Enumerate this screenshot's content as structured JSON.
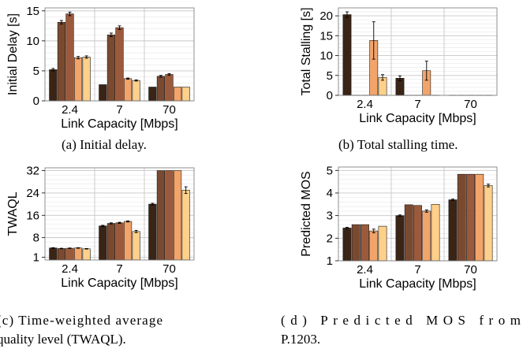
{
  "chart_data": [
    {
      "type": "bar",
      "ylabel": "Initial Delay [s]",
      "xlabel": "Link Capacity [Mbps]",
      "categories": [
        "2.4",
        "7",
        "70"
      ],
      "ylim": [
        0,
        15.5
      ],
      "yticks": [
        0,
        5,
        10,
        15
      ],
      "grid": true,
      "series_colors": [
        "#3a2416",
        "#7a4a30",
        "#9c5a3c",
        "#f2a46a",
        "#ffd08a"
      ],
      "series": [
        {
          "values": [
            5.2,
            2.7,
            2.3
          ],
          "errors": [
            0.2,
            0.0,
            0.0
          ]
        },
        {
          "values": [
            13.1,
            11.0,
            4.1
          ],
          "errors": [
            0.3,
            0.3,
            0.15
          ]
        },
        {
          "values": [
            14.5,
            12.2,
            4.4
          ],
          "errors": [
            0.3,
            0.3,
            0.15
          ]
        },
        {
          "values": [
            7.2,
            3.7,
            2.3
          ],
          "errors": [
            0.2,
            0.1,
            0.0
          ]
        },
        {
          "values": [
            7.3,
            3.4,
            2.3
          ],
          "errors": [
            0.2,
            0.1,
            0.0
          ]
        }
      ],
      "caption": "(a) Initial delay."
    },
    {
      "type": "bar",
      "ylabel": "Total Stalling [s]",
      "xlabel": "Link Capacity [Mbps]",
      "categories": [
        "2.4",
        "7",
        "70"
      ],
      "ylim": [
        0,
        22
      ],
      "yticks": [
        0,
        5,
        10,
        15,
        20
      ],
      "grid": true,
      "series_colors": [
        "#3a2416",
        "#7a4a30",
        "#9c5a3c",
        "#f2a46a",
        "#ffd08a"
      ],
      "series": [
        {
          "values": [
            20.3,
            4.3,
            0.0
          ],
          "errors": [
            0.7,
            0.6,
            0.0
          ]
        },
        {
          "values": [
            0.0,
            0.0,
            0.0
          ],
          "errors": [
            0.0,
            0.0,
            0.0
          ]
        },
        {
          "values": [
            0.0,
            0.0,
            0.0
          ],
          "errors": [
            0.0,
            0.0,
            0.0
          ]
        },
        {
          "values": [
            13.8,
            6.2,
            0.0
          ],
          "errors": [
            4.7,
            2.4,
            0.0
          ]
        },
        {
          "values": [
            4.5,
            0.0,
            0.0
          ],
          "errors": [
            0.7,
            0.0,
            0.0
          ]
        }
      ],
      "caption": "(b) Total stalling time."
    },
    {
      "type": "bar",
      "ylabel": "TWAQL",
      "xlabel": "Link Capacity [Mbps]",
      "categories": [
        "2.4",
        "7",
        "70"
      ],
      "ylim": [
        0,
        33
      ],
      "yticks": [
        1,
        8,
        16,
        24,
        32
      ],
      "grid": true,
      "series_colors": [
        "#3a2416",
        "#7a4a30",
        "#9c5a3c",
        "#f2a46a",
        "#ffd08a"
      ],
      "series": [
        {
          "values": [
            4.3,
            12.2,
            20.0
          ],
          "errors": [
            0.1,
            0.2,
            0.3
          ]
        },
        {
          "values": [
            4.1,
            13.1,
            32.0
          ],
          "errors": [
            0.1,
            0.2,
            0.0
          ]
        },
        {
          "values": [
            4.2,
            13.3,
            32.0
          ],
          "errors": [
            0.1,
            0.2,
            0.0
          ]
        },
        {
          "values": [
            4.3,
            13.8,
            32.0
          ],
          "errors": [
            0.1,
            0.2,
            0.0
          ]
        },
        {
          "values": [
            4.0,
            10.2,
            25.0
          ],
          "errors": [
            0.1,
            0.4,
            1.2
          ]
        }
      ],
      "caption": "(c) Time-weighted average quality level (TWAQL)."
    },
    {
      "type": "bar",
      "ylabel": "Predicted MOS",
      "xlabel": "Link Capacity [Mbps]",
      "categories": [
        "2.4",
        "7",
        "70"
      ],
      "ylim": [
        1,
        5.15
      ],
      "yticks": [
        1,
        2,
        3,
        4,
        5
      ],
      "grid": true,
      "series_colors": [
        "#3a2416",
        "#7a4a30",
        "#9c5a3c",
        "#f2a46a",
        "#ffd08a"
      ],
      "series": [
        {
          "values": [
            2.45,
            3.0,
            3.7
          ],
          "errors": [
            0.03,
            0.03,
            0.03
          ]
        },
        {
          "values": [
            2.6,
            3.48,
            4.83
          ],
          "errors": [
            0.0,
            0.0,
            0.0
          ]
        },
        {
          "values": [
            2.6,
            3.45,
            4.83
          ],
          "errors": [
            0.0,
            0.0,
            0.0
          ]
        },
        {
          "values": [
            2.32,
            3.2,
            4.83
          ],
          "errors": [
            0.08,
            0.05,
            0.0
          ]
        },
        {
          "values": [
            2.53,
            3.5,
            4.33
          ],
          "errors": [
            0.0,
            0.0,
            0.06
          ]
        }
      ],
      "caption": "(d) Predicted MOS from P.1203."
    }
  ]
}
